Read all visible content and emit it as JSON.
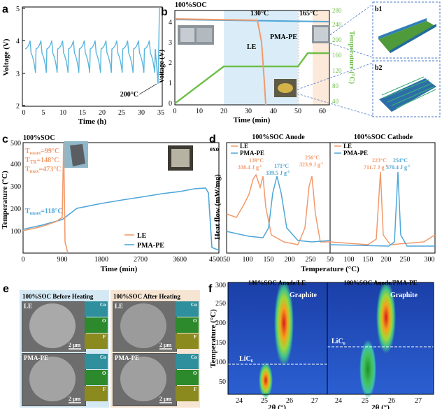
{
  "panels": {
    "a": {
      "letter": "a",
      "ylabel": "Voltage (V)",
      "xlabel": "Time (h)",
      "xticks": [
        "0",
        "5",
        "10",
        "15",
        "20",
        "25",
        "30",
        "35"
      ],
      "yticks": [
        "2",
        "3",
        "4",
        "5"
      ],
      "annotation": "200°C",
      "chart_data": {
        "type": "line",
        "series": [
          {
            "name": "",
            "desc": "cycling voltage 3.0–4.2 V, 12 cycles, spike at ~34.5 h"
          }
        ],
        "xlim": [
          0,
          35
        ],
        "ylim": [
          2,
          5
        ]
      }
    },
    "b": {
      "letter": "b",
      "title": "100%SOC",
      "ylabel": "Voltage (V)",
      "y2label": "Temperature (°C)",
      "xlabel": "Time (min)",
      "xticks": [
        "0",
        "10",
        "20",
        "30",
        "40",
        "50",
        "60"
      ],
      "yticks": [
        "0",
        "1",
        "2",
        "3",
        "4"
      ],
      "y2ticks": [
        "40",
        "80",
        "120",
        "160",
        "200",
        "240",
        "280"
      ],
      "t130": "130°C",
      "t165": "165°C",
      "le": "LE",
      "pma": "PMA-PE",
      "sub1": "b1",
      "sub2": "b2",
      "chart_data": {
        "type": "line",
        "series": [
          {
            "name": "LE",
            "values_desc": "4.2 V until ~36 min then drops to 0"
          },
          {
            "name": "PMA-PE",
            "values_desc": "~4.15 V flat to 60 min"
          },
          {
            "name": "Temperature",
            "values_desc": "ramp to 130°C at 20 min, hold to 50, ramp to 165°C at 55"
          }
        ],
        "xlim": [
          0,
          65
        ],
        "ylim": [
          0,
          4.5
        ],
        "y2lim": [
          40,
          280
        ]
      }
    },
    "c": {
      "letter": "c",
      "title": "100%SOC",
      "ylabel": "Temperature (°C)",
      "xlabel": "Time (min)",
      "xticks": [
        "0",
        "900",
        "1800",
        "2700",
        "3600",
        "4500"
      ],
      "yticks": [
        "100",
        "200",
        "300",
        "400",
        "500"
      ],
      "t_onset_le": "T",
      "onset": "onset",
      "onset_le_val": "=99°C",
      "tr": "TR",
      "tr_val": "=148°C",
      "max": "max",
      "max_val": "=473°C",
      "onset_pma_val": "=118°C",
      "legend": [
        "LE",
        "PMA-PE"
      ],
      "chart_data": {
        "type": "line",
        "series": [
          {
            "name": "LE",
            "points": [
              [
                0,
                60
              ],
              [
                500,
                110
              ],
              [
                900,
                150
              ],
              [
                960,
                470
              ],
              [
                1000,
                60
              ]
            ]
          },
          {
            "name": "PMA-PE",
            "points": [
              [
                0,
                60
              ],
              [
                900,
                150
              ],
              [
                1800,
                185
              ],
              [
                2700,
                200
              ],
              [
                3600,
                240
              ],
              [
                4000,
                265
              ],
              [
                4200,
                60
              ]
            ]
          }
        ],
        "xlim": [
          0,
          4500
        ],
        "ylim": [
          0,
          500
        ]
      }
    },
    "d": {
      "letter": "d",
      "exo": "exo",
      "ylabel": "Heat flow (mW/mg)",
      "xlabel": "Temperature (°C)",
      "title_l": "100%SOC Anode",
      "title_r": "100%SOC Cathode",
      "xticks_l": [
        "50",
        "100",
        "150",
        "200",
        "250"
      ],
      "xticks_r": [
        "250",
        "300"
      ],
      "xticks_r_all": [
        "50",
        "100",
        "150",
        "200",
        "250",
        "300"
      ],
      "ann": {
        "le139": "139°C",
        "le139v": "338.4 J g",
        "pma171": "171°C",
        "pma171v": "339.5 J g",
        "le256": "256°C",
        "le256v": "323.9 J g",
        "le223": "223°C",
        "le223v": "711.7 J g",
        "pma254": "254°C",
        "pma254v": "370.4 J g",
        "neg1": "-1"
      },
      "legend": [
        "LE",
        "PMA-PE"
      ],
      "chart_data": {
        "type": "line",
        "series": [
          {
            "name": "LE anode peaks",
            "values": [
              [
                139,
                338.4
              ],
              [
                256,
                323.9
              ]
            ]
          },
          {
            "name": "PMA-PE anode peak",
            "values": [
              [
                171,
                339.5
              ]
            ]
          },
          {
            "name": "LE cathode peak",
            "values": [
              [
                223,
                711.7
              ]
            ]
          },
          {
            "name": "PMA-PE cathode peak",
            "values": [
              [
                254,
                370.4
              ]
            ]
          }
        ]
      }
    },
    "e": {
      "letter": "e",
      "title_l": "100%SOC  Before Heating",
      "title_r": "100%SOC  After Heating",
      "le": "LE",
      "pma": "PMA-PE",
      "scale": "2 μm",
      "co": "Co",
      "o": "O",
      "f": "F"
    },
    "f": {
      "letter": "f",
      "title_l": "100%SOC Anode/LE",
      "title_r": "100%SOC Anode/PMA-PE",
      "ylabel": "Temperature (°C)",
      "xlabel": "2θ (°)",
      "yticks": [
        "50",
        "100",
        "150",
        "200",
        "250",
        "300"
      ],
      "xticks": [
        "24",
        "25",
        "26",
        "27"
      ],
      "graphite": "Graphite",
      "lic": "LiC",
      "lic_sub": "6",
      "chart_data": {
        "type": "heatmap",
        "xlim": [
          23.5,
          27.4
        ],
        "ylim": [
          30,
          300
        ],
        "transitions": [
          {
            "name": "LE",
            "LiC6_to_graphite_T": 95
          },
          {
            "name": "PMA-PE",
            "LiC6_to_graphite_T": 130
          }
        ]
      }
    }
  },
  "colors": {
    "le": "#f29a6b",
    "pma": "#4fa6d8",
    "temp": "#6fbf4a",
    "blue_band": "#d9ecf8",
    "orange_band": "#fde9d9"
  }
}
